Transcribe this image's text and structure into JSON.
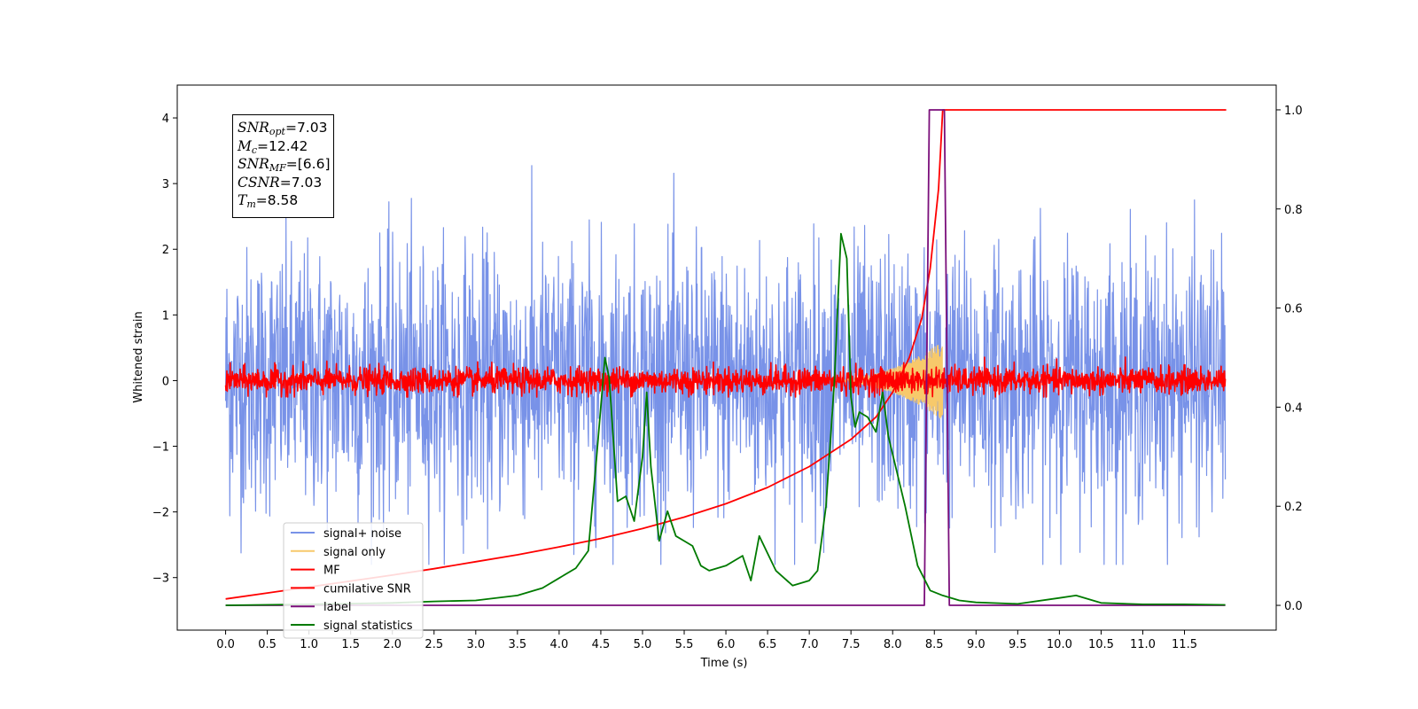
{
  "chart_data": {
    "type": "line",
    "xlabel": "Time (s)",
    "ylabel": "Whitened strain",
    "xlim": [
      -0.58,
      12.6
    ],
    "ylim": [
      -3.8,
      4.5
    ],
    "y2lim": [
      -0.05,
      1.05
    ],
    "x_ticks": [
      "0.0",
      "0.5",
      "1.0",
      "1.5",
      "2.0",
      "2.5",
      "3.0",
      "3.5",
      "4.0",
      "4.5",
      "5.0",
      "5.5",
      "6.0",
      "6.5",
      "7.0",
      "7.5",
      "8.0",
      "8.5",
      "9.0",
      "9.5",
      "10.0",
      "10.5",
      "11.0",
      "11.5"
    ],
    "y_ticks": [
      "−3",
      "−2",
      "−1",
      "0",
      "1",
      "2",
      "3",
      "4"
    ],
    "y2_ticks": [
      "0.0",
      "0.2",
      "0.4",
      "0.6",
      "0.8",
      "1.0"
    ],
    "legend_position": "lower-left",
    "legend": [
      {
        "name": "signal+ noise",
        "color": "#7892e8"
      },
      {
        "name": "signal only",
        "color": "#f7c96b"
      },
      {
        "name": "MF",
        "color": "#ff0000"
      },
      {
        "name": "cumilative SNR",
        "color": "#ff0000"
      },
      {
        "name": "label",
        "color": "#7b0f7b"
      },
      {
        "name": "signal statistics",
        "color": "#007a00"
      }
    ],
    "series": [
      {
        "name": "signal+ noise",
        "axis": "left",
        "kind": "noise",
        "x_range": [
          0,
          11.99
        ],
        "amplitude": 1.0,
        "range": [
          -2.8,
          4.15
        ]
      },
      {
        "name": "signal only",
        "axis": "left",
        "kind": "chirp",
        "x_range": [
          7.0,
          8.6
        ],
        "peak": 0.6
      },
      {
        "name": "MF",
        "axis": "left",
        "kind": "noise",
        "x_range": [
          0,
          11.99
        ],
        "amplitude": 0.1,
        "range": [
          -0.25,
          0.45
        ]
      },
      {
        "name": "cumilative SNR",
        "axis": "right",
        "x": [
          0,
          0.5,
          1,
          1.5,
          2,
          2.5,
          3,
          3.5,
          4,
          4.5,
          5,
          5.5,
          6,
          6.5,
          7,
          7.5,
          7.8,
          8.0,
          8.2,
          8.35,
          8.45,
          8.55,
          8.6,
          12.0
        ],
        "y": [
          0.013,
          0.025,
          0.037,
          0.049,
          0.061,
          0.074,
          0.088,
          0.102,
          0.118,
          0.135,
          0.155,
          0.178,
          0.205,
          0.238,
          0.28,
          0.335,
          0.38,
          0.43,
          0.5,
          0.58,
          0.68,
          0.84,
          1.0,
          1.0
        ]
      },
      {
        "name": "label",
        "axis": "right",
        "x": [
          0,
          8.38,
          8.44,
          8.62,
          8.68,
          11.99
        ],
        "y": [
          0,
          0,
          1,
          1,
          0,
          0
        ]
      },
      {
        "name": "signal statistics",
        "axis": "right",
        "x": [
          0,
          1,
          2,
          2.5,
          3,
          3.5,
          3.8,
          4.0,
          4.2,
          4.35,
          4.45,
          4.55,
          4.6,
          4.7,
          4.8,
          4.9,
          5.0,
          5.05,
          5.1,
          5.2,
          5.3,
          5.4,
          5.5,
          5.6,
          5.7,
          5.8,
          6.0,
          6.2,
          6.3,
          6.4,
          6.6,
          6.8,
          7.0,
          7.1,
          7.2,
          7.3,
          7.38,
          7.45,
          7.5,
          7.55,
          7.6,
          7.7,
          7.8,
          7.88,
          7.95,
          8.05,
          8.15,
          8.3,
          8.45,
          8.6,
          8.8,
          9.0,
          9.5,
          10.0,
          10.2,
          10.5,
          11.0,
          11.5,
          11.99
        ],
        "y": [
          0.0,
          0.002,
          0.005,
          0.008,
          0.01,
          0.02,
          0.035,
          0.055,
          0.075,
          0.11,
          0.3,
          0.5,
          0.46,
          0.21,
          0.22,
          0.17,
          0.3,
          0.43,
          0.28,
          0.13,
          0.19,
          0.14,
          0.13,
          0.12,
          0.08,
          0.07,
          0.08,
          0.1,
          0.05,
          0.14,
          0.07,
          0.04,
          0.05,
          0.07,
          0.2,
          0.45,
          0.75,
          0.7,
          0.42,
          0.36,
          0.39,
          0.38,
          0.35,
          0.43,
          0.34,
          0.27,
          0.2,
          0.08,
          0.03,
          0.02,
          0.01,
          0.006,
          0.003,
          0.015,
          0.02,
          0.005,
          0.002,
          0.002,
          0.001
        ]
      }
    ],
    "annotations": {
      "snr_opt": "=7.03",
      "mc": "=12.42",
      "snr_mf": "=[6.6]",
      "csnr": "=7.03",
      "tm": "=8.58"
    }
  }
}
